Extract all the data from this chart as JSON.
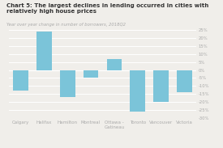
{
  "title": "Chart 5: The largest declines in lending occurred in cities with relatively high house prices",
  "subtitle": "Year over year change in number of borrowers, 2018Q2",
  "categories": [
    "Calgary",
    "Halifax",
    "Hamilton",
    "Montreal",
    "Ottawa -\nGatineau",
    "Toronto",
    "Vancouver",
    "Victoria"
  ],
  "values": [
    -13,
    24,
    -17,
    -5,
    7,
    -26,
    -20,
    -14
  ],
  "bar_color": "#7bc4d9",
  "ylim": [
    -30,
    25
  ],
  "yticks": [
    -30,
    -25,
    -20,
    -15,
    -10,
    -5,
    0,
    5,
    10,
    15,
    20,
    25
  ],
  "ytick_labels": [
    "-30%",
    "-25%",
    "-20%",
    "-15%",
    "-10%",
    "-5%",
    "0%",
    "5%",
    "10%",
    "15%",
    "20%",
    "25%"
  ],
  "background_color": "#f0eeea",
  "grid_color": "#ffffff",
  "title_fontsize": 5.0,
  "subtitle_fontsize": 3.8,
  "tick_fontsize": 3.8,
  "xlabel_fontsize": 4.0,
  "title_color": "#333333",
  "tick_color": "#aaaaaa"
}
